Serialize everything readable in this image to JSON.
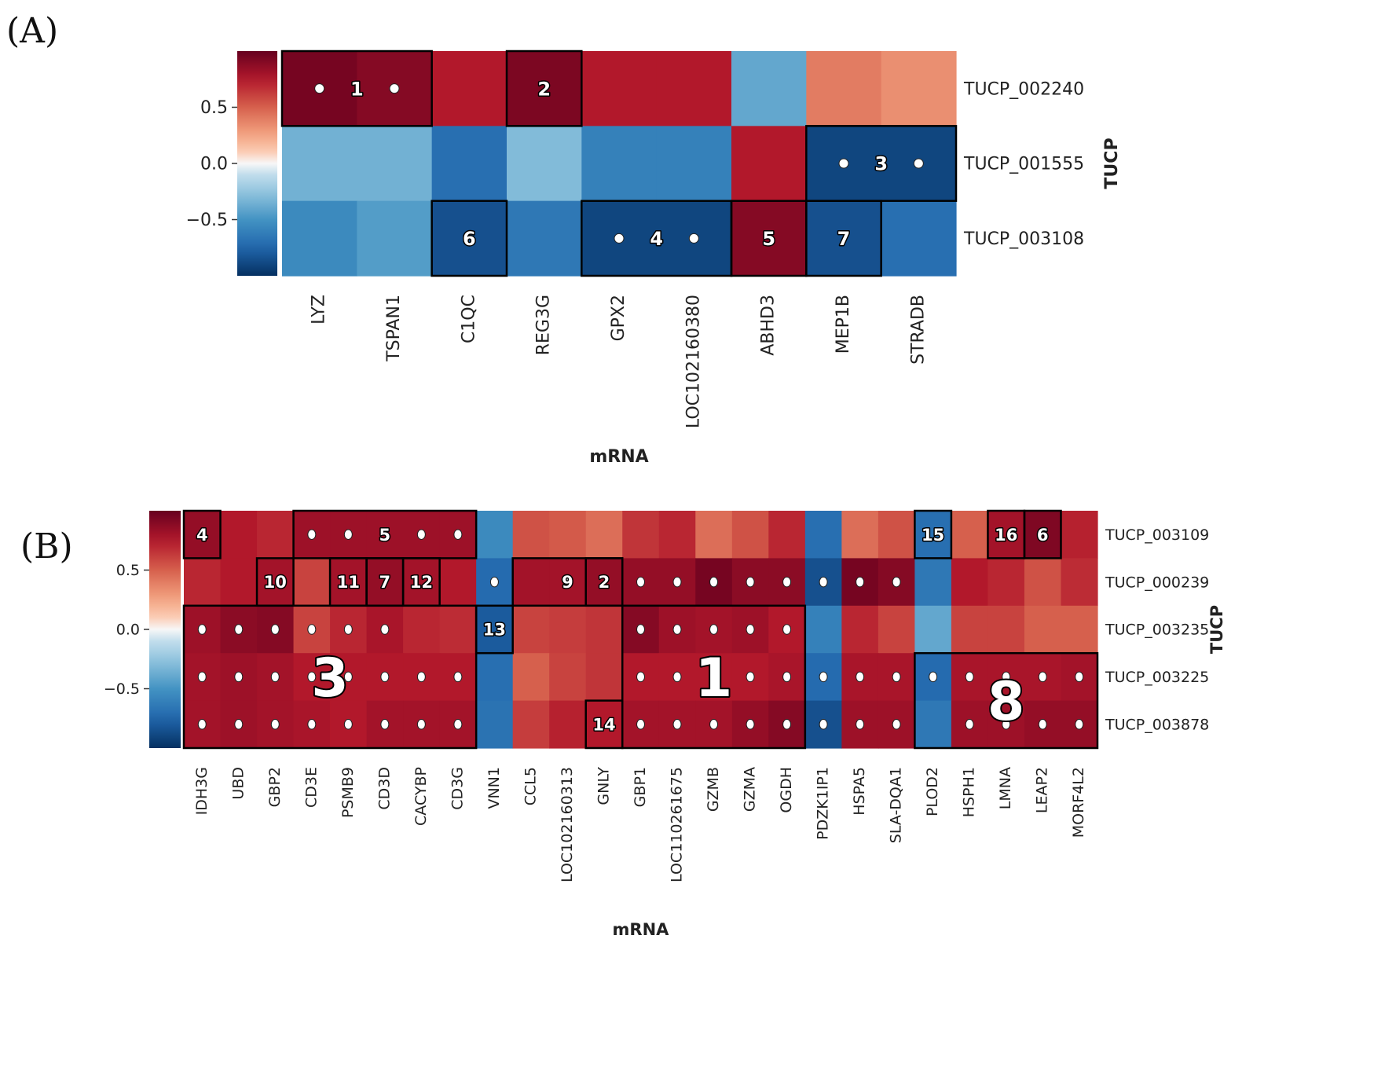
{
  "chart_data": [
    {
      "panel": "(A)",
      "type": "heatmap",
      "xlabel": "mRNA",
      "ylabel": "TUCP",
      "x": [
        "LYZ",
        "TSPAN1",
        "C1QC",
        "REG3G",
        "GPX2",
        "LOC102160380",
        "ABHD3",
        "MEP1B",
        "STRADB"
      ],
      "y": [
        "TUCP_002240",
        "TUCP_001555",
        "TUCP_003108"
      ],
      "values": [
        [
          0.95,
          0.9,
          0.75,
          0.93,
          0.75,
          0.75,
          -0.4,
          0.4,
          0.33
        ],
        [
          -0.35,
          -0.35,
          -0.7,
          -0.3,
          -0.6,
          -0.6,
          0.75,
          -0.9,
          -0.9
        ],
        [
          -0.55,
          -0.45,
          -0.85,
          -0.65,
          -0.9,
          -0.9,
          0.9,
          -0.85,
          -0.7
        ]
      ],
      "colorbar": {
        "range": [
          -1,
          1
        ],
        "ticks": [
          "0.5",
          "0.0",
          "−0.5"
        ],
        "tick_values": [
          0.5,
          0.0,
          -0.5
        ]
      },
      "clusters": [
        {
          "label": "1",
          "row": 0,
          "col_start": 0,
          "col_end": 1,
          "dots": [
            [
              0,
              0
            ],
            [
              0,
              1
            ]
          ]
        },
        {
          "label": "2",
          "row": 0,
          "col_start": 3,
          "col_end": 3,
          "dots": []
        },
        {
          "label": "3",
          "row": 1,
          "col_start": 7,
          "col_end": 8,
          "dots": [
            [
              1,
              7
            ],
            [
              1,
              8
            ]
          ]
        },
        {
          "label": "4",
          "row": 2,
          "col_start": 4,
          "col_end": 5,
          "dots": [
            [
              2,
              4
            ],
            [
              2,
              5
            ]
          ]
        },
        {
          "label": "5",
          "row": 2,
          "col_start": 6,
          "col_end": 6,
          "dots": []
        },
        {
          "label": "6",
          "row": 2,
          "col_start": 2,
          "col_end": 2,
          "dots": []
        },
        {
          "label": "7",
          "row": 2,
          "col_start": 7,
          "col_end": 7,
          "dots": []
        }
      ]
    },
    {
      "panel": "(B)",
      "type": "heatmap",
      "xlabel": "mRNA",
      "ylabel": "TUCP",
      "x": [
        "IDH3G",
        "UBD",
        "GBP2",
        "CD3E",
        "PSMB9",
        "CD3D",
        "CACYBP",
        "CD3G",
        "VNN1",
        "CCL5",
        "LOC102160313",
        "GNLY",
        "GBP1",
        "LOC110261675",
        "GZMB",
        "GZMA",
        "OGDH",
        "PDZK1IP1",
        "HSPA5",
        "SLA-DQA1",
        "PLOD2",
        "HSPH1",
        "LMNA",
        "LEAP2",
        "MORF4L2"
      ],
      "y": [
        "TUCP_003109",
        "TUCP_000239",
        "TUCP_003235",
        "TUCP_003225",
        "TUCP_003878"
      ],
      "values": [
        [
          0.85,
          0.75,
          0.7,
          0.82,
          0.82,
          0.82,
          0.82,
          0.82,
          -0.55,
          0.55,
          0.52,
          0.45,
          0.65,
          0.7,
          0.45,
          0.55,
          0.7,
          -0.7,
          0.45,
          0.55,
          -0.7,
          0.5,
          0.8,
          0.92,
          0.72
        ],
        [
          0.7,
          0.75,
          0.8,
          0.6,
          0.8,
          0.85,
          0.8,
          0.75,
          -0.72,
          0.8,
          0.8,
          0.85,
          0.85,
          0.85,
          0.95,
          0.88,
          0.88,
          -0.85,
          0.95,
          0.9,
          -0.65,
          0.75,
          0.7,
          0.55,
          0.68
        ],
        [
          0.82,
          0.88,
          0.9,
          0.6,
          0.7,
          0.78,
          0.7,
          0.68,
          -0.8,
          0.6,
          0.62,
          0.65,
          0.9,
          0.82,
          0.8,
          0.82,
          0.75,
          -0.6,
          0.7,
          0.6,
          -0.4,
          0.6,
          0.6,
          0.5,
          0.5
        ],
        [
          0.8,
          0.82,
          0.8,
          0.75,
          0.75,
          0.75,
          0.75,
          0.75,
          -0.7,
          0.5,
          0.6,
          0.65,
          0.75,
          0.75,
          0.75,
          0.75,
          0.78,
          -0.72,
          0.78,
          0.78,
          -0.72,
          0.78,
          0.78,
          0.78,
          0.8
        ],
        [
          0.8,
          0.82,
          0.8,
          0.78,
          0.75,
          0.8,
          0.8,
          0.8,
          -0.68,
          0.62,
          0.72,
          0.75,
          0.8,
          0.8,
          0.8,
          0.85,
          0.9,
          -0.85,
          0.82,
          0.82,
          -0.65,
          0.82,
          0.82,
          0.85,
          0.85
        ]
      ],
      "colorbar": {
        "range": [
          -1,
          1
        ],
        "ticks": [
          "0.5",
          "0.0",
          "−0.5"
        ],
        "tick_values": [
          0.5,
          0.0,
          -0.5
        ]
      },
      "clusters": [
        {
          "label": "1",
          "row_start": 2,
          "row_end": 4,
          "col_start": 12,
          "col_end": 16,
          "big": true
        },
        {
          "label": "2",
          "row_start": 1,
          "row_end": 1,
          "col_start": 11,
          "col_end": 11
        },
        {
          "label": "3",
          "row_start": 2,
          "row_end": 4,
          "col_start": 0,
          "col_end": 7,
          "big": true
        },
        {
          "label": "4",
          "row_start": 0,
          "row_end": 0,
          "col_start": 0,
          "col_end": 0
        },
        {
          "label": "5",
          "row_start": 0,
          "row_end": 0,
          "col_start": 3,
          "col_end": 7
        },
        {
          "label": "6",
          "row_start": 0,
          "row_end": 0,
          "col_start": 23,
          "col_end": 23
        },
        {
          "label": "7",
          "row_start": 1,
          "row_end": 1,
          "col_start": 5,
          "col_end": 5
        },
        {
          "label": "8",
          "row_start": 3,
          "row_end": 4,
          "col_start": 20,
          "col_end": 24,
          "big": true
        },
        {
          "label": "9",
          "row_start": 1,
          "row_end": 1,
          "col_start": 9,
          "col_end": 11
        },
        {
          "label": "10",
          "row_start": 1,
          "row_end": 1,
          "col_start": 2,
          "col_end": 2
        },
        {
          "label": "11",
          "row_start": 1,
          "row_end": 1,
          "col_start": 4,
          "col_end": 4
        },
        {
          "label": "12",
          "row_start": 1,
          "row_end": 1,
          "col_start": 6,
          "col_end": 6
        },
        {
          "label": "13",
          "row_start": 2,
          "row_end": 2,
          "col_start": 8,
          "col_end": 8
        },
        {
          "label": "14",
          "row_start": 4,
          "row_end": 4,
          "col_start": 11,
          "col_end": 11
        },
        {
          "label": "15",
          "row_start": 0,
          "row_end": 0,
          "col_start": 20,
          "col_end": 20
        },
        {
          "label": "16",
          "row_start": 0,
          "row_end": 0,
          "col_start": 22,
          "col_end": 22
        }
      ],
      "dots": [
        [
          0,
          3
        ],
        [
          0,
          4
        ],
        [
          0,
          6
        ],
        [
          0,
          7
        ],
        [
          1,
          8
        ],
        [
          1,
          10
        ],
        [
          1,
          12
        ],
        [
          1,
          13
        ],
        [
          1,
          14
        ],
        [
          1,
          15
        ],
        [
          1,
          16
        ],
        [
          1,
          17
        ],
        [
          1,
          18
        ],
        [
          1,
          19
        ],
        [
          2,
          0
        ],
        [
          2,
          1
        ],
        [
          2,
          2
        ],
        [
          2,
          3
        ],
        [
          2,
          4
        ],
        [
          2,
          5
        ],
        [
          2,
          12
        ],
        [
          2,
          13
        ],
        [
          2,
          14
        ],
        [
          2,
          15
        ],
        [
          2,
          16
        ],
        [
          3,
          0
        ],
        [
          3,
          1
        ],
        [
          3,
          2
        ],
        [
          3,
          3
        ],
        [
          3,
          4
        ],
        [
          3,
          5
        ],
        [
          3,
          6
        ],
        [
          3,
          7
        ],
        [
          3,
          12
        ],
        [
          3,
          13
        ],
        [
          3,
          14
        ],
        [
          3,
          15
        ],
        [
          3,
          16
        ],
        [
          3,
          17
        ],
        [
          3,
          18
        ],
        [
          3,
          19
        ],
        [
          3,
          20
        ],
        [
          3,
          21
        ],
        [
          3,
          22
        ],
        [
          3,
          23
        ],
        [
          3,
          24
        ],
        [
          4,
          0
        ],
        [
          4,
          1
        ],
        [
          4,
          2
        ],
        [
          4,
          3
        ],
        [
          4,
          4
        ],
        [
          4,
          5
        ],
        [
          4,
          6
        ],
        [
          4,
          7
        ],
        [
          4,
          12
        ],
        [
          4,
          13
        ],
        [
          4,
          14
        ],
        [
          4,
          15
        ],
        [
          4,
          16
        ],
        [
          4,
          17
        ],
        [
          4,
          18
        ],
        [
          4,
          19
        ],
        [
          4,
          21
        ],
        [
          4,
          22
        ],
        [
          4,
          23
        ],
        [
          4,
          24
        ]
      ]
    }
  ]
}
